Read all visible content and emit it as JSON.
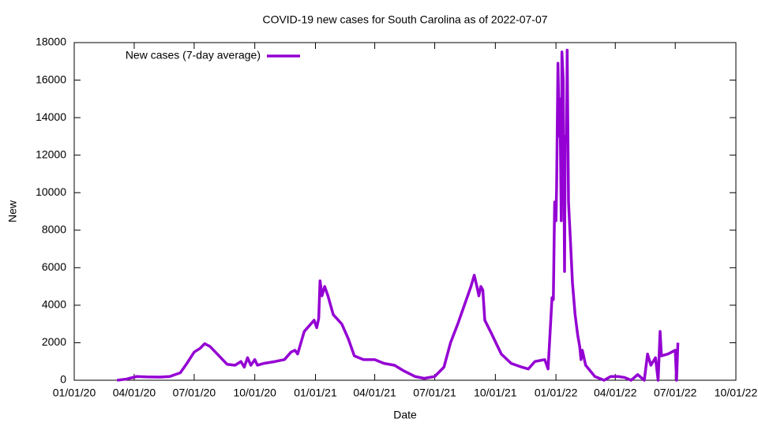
{
  "chart_data": {
    "type": "line",
    "title": "COVID-19 new cases for South Carolina as of 2022-07-07",
    "xlabel": "Date",
    "ylabel": "New",
    "xlim": [
      "01/01/20",
      "10/01/22"
    ],
    "xticks": [
      "01/01/20",
      "04/01/20",
      "07/01/20",
      "10/01/20",
      "01/01/21",
      "04/01/21",
      "07/01/21",
      "10/01/21",
      "01/01/22",
      "04/01/22",
      "07/01/22",
      "10/01/22"
    ],
    "ylim": [
      0,
      18000
    ],
    "yticks": [
      0,
      2000,
      4000,
      6000,
      8000,
      10000,
      12000,
      14000,
      16000,
      18000
    ],
    "legend": "upper left",
    "x": [
      "03/06/20",
      "03/20/20",
      "04/05/20",
      "04/20/20",
      "05/10/20",
      "05/25/20",
      "06/10/20",
      "06/20/20",
      "07/01/20",
      "07/10/20",
      "07/17/20",
      "07/25/20",
      "08/05/20",
      "08/20/20",
      "09/01/20",
      "09/10/20",
      "09/15/20",
      "09/20/20",
      "09/25/20",
      "10/01/20",
      "10/05/20",
      "10/15/20",
      "11/01/20",
      "11/15/20",
      "11/25/20",
      "12/01/20",
      "12/05/20",
      "12/15/20",
      "12/25/20",
      "12/30/20",
      "01/03/21",
      "01/06/21",
      "01/08/21",
      "01/11/21",
      "01/15/21",
      "01/20/21",
      "01/28/21",
      "02/10/21",
      "02/20/21",
      "03/01/21",
      "03/15/21",
      "04/01/21",
      "04/15/21",
      "05/01/21",
      "05/15/21",
      "06/01/21",
      "06/15/21",
      "07/01/21",
      "07/15/21",
      "07/25/21",
      "08/05/21",
      "08/15/21",
      "08/25/21",
      "08/30/21",
      "09/03/21",
      "09/06/21",
      "09/09/21",
      "09/12/21",
      "09/15/21",
      "09/25/21",
      "10/10/21",
      "10/25/21",
      "11/10/21",
      "11/20/21",
      "11/30/21",
      "12/15/21",
      "12/20/21",
      "12/23/21",
      "12/26/21",
      "12/28/21",
      "12/30/21",
      "01/01/22",
      "01/02/22",
      "01/04/22",
      "01/06/22",
      "01/07/22",
      "01/09/22",
      "01/10/22",
      "01/12/22",
      "01/14/22",
      "01/15/22",
      "01/17/22",
      "01/18/22",
      "01/20/22",
      "01/23/22",
      "01/26/22",
      "01/30/22",
      "02/03/22",
      "02/06/22",
      "02/08/22",
      "02/10/22",
      "02/15/22",
      "03/01/22",
      "03/15/22",
      "03/25/22",
      "04/05/22",
      "04/15/22",
      "04/25/22",
      "05/05/22",
      "05/15/22",
      "05/20/22",
      "05/25/22",
      "06/01/22",
      "06/05/22",
      "06/08/22",
      "06/10/22",
      "06/20/22",
      "07/01/22",
      "07/03/22",
      "07/05/22"
    ],
    "series": [
      {
        "name": "New cases (7-day average)",
        "color": "#9400d3",
        "values": [
          0,
          60,
          200,
          180,
          170,
          200,
          400,
          900,
          1500,
          1700,
          1950,
          1800,
          1400,
          850,
          800,
          1000,
          700,
          1200,
          800,
          1100,
          800,
          900,
          1000,
          1100,
          1500,
          1600,
          1400,
          2600,
          3000,
          3200,
          2800,
          3300,
          5300,
          4500,
          5000,
          4500,
          3500,
          3000,
          2200,
          1300,
          1100,
          1100,
          900,
          800,
          500,
          200,
          100,
          200,
          700,
          2000,
          3000,
          4000,
          5000,
          5600,
          5000,
          4500,
          5000,
          4800,
          3200,
          2500,
          1400,
          900,
          700,
          600,
          1000,
          1100,
          600,
          2500,
          4400,
          4300,
          9500,
          8500,
          10400,
          16900,
          13000,
          15000,
          8500,
          17500,
          16000,
          5800,
          13000,
          12800,
          17600,
          9500,
          7400,
          5200,
          3500,
          2400,
          1800,
          1100,
          1600,
          800,
          200,
          0,
          200,
          200,
          150,
          0,
          300,
          0,
          1400,
          800,
          1200,
          0,
          2600,
          1300,
          1400,
          1600,
          0,
          2000
        ]
      }
    ]
  }
}
